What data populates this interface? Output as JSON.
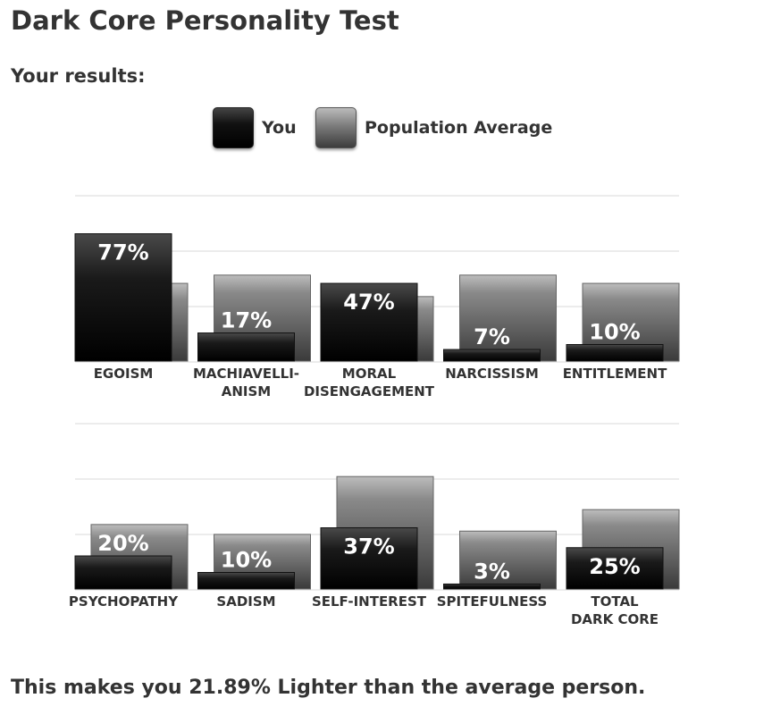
{
  "page": {
    "title": "Dark Core Personality Test",
    "subtitle": "Your results:",
    "footer": "This makes you 21.89% Lighter than the average person."
  },
  "legend": {
    "you": "You",
    "population": "Population Average"
  },
  "colors": {
    "you_top": "#4a4a4a",
    "you_bottom": "#000000",
    "pop_top": "#bdbdbd",
    "pop_bottom": "#3a3a3a",
    "grid": "#e6e6e6",
    "text": "#333333"
  },
  "chart_data": [
    {
      "type": "bar",
      "series": [
        {
          "name": "You",
          "values": [
            77,
            17,
            47,
            7,
            10
          ]
        },
        {
          "name": "Population Average",
          "values": [
            47,
            52,
            39,
            52,
            47
          ]
        }
      ],
      "categories": [
        [
          "EGOISM"
        ],
        [
          "MACHIAVELLI-",
          "ANISM"
        ],
        [
          "MORAL",
          "DISENGAGEMENT"
        ],
        [
          "NARCISSISM"
        ],
        [
          "ENTITLEMENT"
        ]
      ],
      "data_labels": [
        "77%",
        "17%",
        "47%",
        "7%",
        "10%"
      ],
      "ylim": [
        0,
        100
      ],
      "grid": true
    },
    {
      "type": "bar",
      "series": [
        {
          "name": "You",
          "values": [
            20,
            10,
            37,
            3,
            25
          ]
        },
        {
          "name": "Population Average",
          "values": [
            39,
            33,
            68,
            35,
            48
          ]
        }
      ],
      "categories": [
        [
          "PSYCHOPATHY"
        ],
        [
          "SADISM"
        ],
        [
          "SELF-INTEREST"
        ],
        [
          "SPITEFULNESS"
        ],
        [
          "TOTAL",
          "DARK CORE"
        ]
      ],
      "data_labels": [
        "20%",
        "10%",
        "37%",
        "3%",
        "25%"
      ],
      "ylim": [
        0,
        100
      ],
      "grid": true
    }
  ]
}
